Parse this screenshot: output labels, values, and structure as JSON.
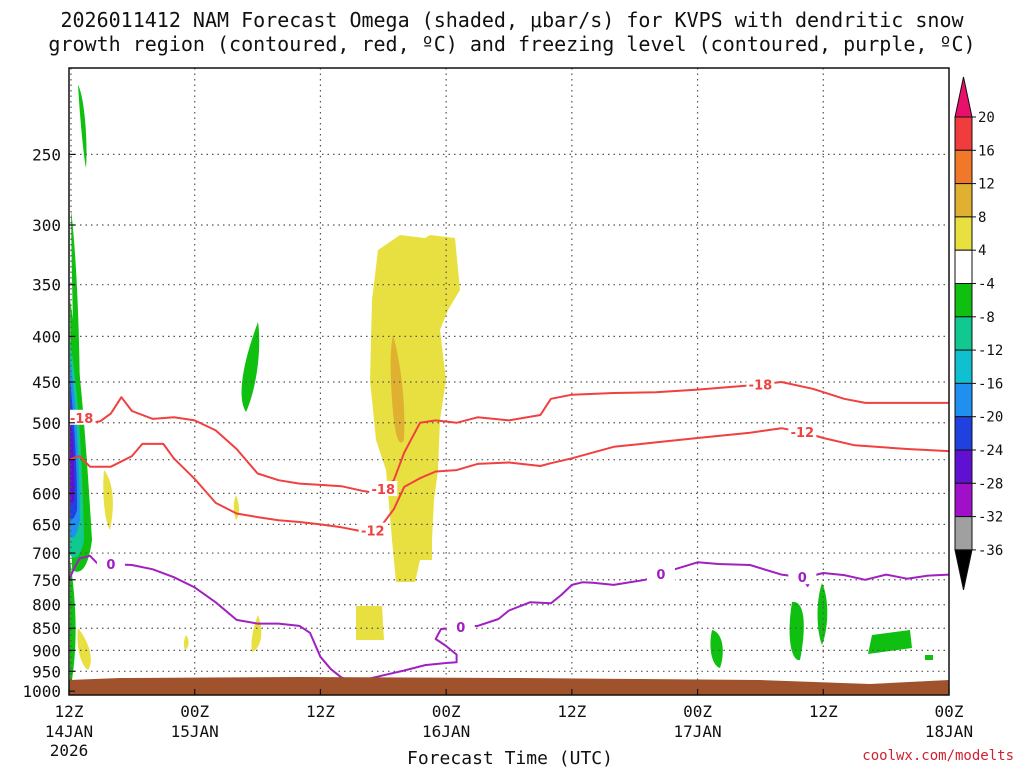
{
  "chart_data": {
    "type": "time-height cross section",
    "title_line1": "2026011412 NAM Forecast Omega (shaded, μbar/s) for KVPS with dendritic snow",
    "title_line2": "growth region (contoured, red, ºC) and freezing level (contoured, purple, ºC)",
    "xlabel": "Forecast Time (UTC)",
    "credit": "coolwx.com/modelts",
    "x_range_hours": [
      0,
      84
    ],
    "y_range_hpa": [
      200,
      1010
    ],
    "y_scale": "log-pressure",
    "grid": true,
    "x_ticks": [
      {
        "h": 0,
        "l1": "12Z",
        "l2": "14JAN",
        "l3": "2026"
      },
      {
        "h": 12,
        "l1": "00Z",
        "l2": "15JAN",
        "l3": ""
      },
      {
        "h": 24,
        "l1": "12Z",
        "l2": "",
        "l3": ""
      },
      {
        "h": 36,
        "l1": "00Z",
        "l2": "16JAN",
        "l3": ""
      },
      {
        "h": 48,
        "l1": "12Z",
        "l2": "",
        "l3": ""
      },
      {
        "h": 60,
        "l1": "00Z",
        "l2": "17JAN",
        "l3": ""
      },
      {
        "h": 72,
        "l1": "12Z",
        "l2": "",
        "l3": ""
      },
      {
        "h": 84,
        "l1": "00Z",
        "l2": "18JAN",
        "l3": ""
      }
    ],
    "y_ticks": [
      250,
      300,
      350,
      400,
      450,
      500,
      550,
      600,
      650,
      700,
      750,
      800,
      850,
      900,
      950,
      1000
    ],
    "colorbar": {
      "labels": [
        "20",
        "16",
        "12",
        "8",
        "4",
        "-4",
        "-8",
        "-12",
        "-16",
        "-20",
        "-24",
        "-28",
        "-32",
        "-36"
      ],
      "colors": [
        "#e8106a",
        "#f03c3c",
        "#f07828",
        "#e0b030",
        "#e8e040",
        "#ffffff",
        "#10c010",
        "#10c890",
        "#10c0d0",
        "#2090f0",
        "#2040e0",
        "#6010d0",
        "#a010c8",
        "#a0a0a0",
        "#000000"
      ]
    },
    "series": [
      {
        "name": "-18",
        "color": "#f04040",
        "points": [
          [
            0,
            488
          ],
          [
            1,
            492
          ],
          [
            2,
            500
          ],
          [
            3,
            498
          ],
          [
            4,
            488
          ],
          [
            5,
            468
          ],
          [
            6,
            485
          ],
          [
            8,
            495
          ],
          [
            10,
            493
          ],
          [
            12,
            497
          ],
          [
            14,
            510
          ],
          [
            16,
            535
          ],
          [
            18,
            570
          ],
          [
            20,
            580
          ],
          [
            22,
            585
          ],
          [
            24,
            587
          ],
          [
            26,
            589
          ],
          [
            28,
            596
          ],
          [
            29.5,
            600
          ],
          [
            31,
            580
          ],
          [
            32,
            540
          ],
          [
            33.5,
            500
          ],
          [
            35,
            497
          ],
          [
            37,
            500
          ],
          [
            39,
            493
          ],
          [
            42,
            497
          ],
          [
            45,
            490
          ],
          [
            46,
            470
          ],
          [
            48,
            465
          ],
          [
            52,
            463
          ],
          [
            56,
            462
          ],
          [
            60,
            459
          ],
          [
            65,
            454
          ],
          [
            68,
            450
          ],
          [
            71,
            458
          ],
          [
            74,
            470
          ],
          [
            76,
            475
          ],
          [
            80,
            475
          ],
          [
            84,
            475
          ]
        ]
      },
      {
        "name": "-12",
        "color": "#f04040",
        "points": [
          [
            0,
            550
          ],
          [
            1,
            545
          ],
          [
            2,
            560
          ],
          [
            4,
            560
          ],
          [
            6,
            545
          ],
          [
            7,
            528
          ],
          [
            9,
            528
          ],
          [
            10,
            548
          ],
          [
            12,
            578
          ],
          [
            14,
            615
          ],
          [
            16,
            632
          ],
          [
            18,
            638
          ],
          [
            20,
            643
          ],
          [
            22,
            646
          ],
          [
            24,
            650
          ],
          [
            26,
            655
          ],
          [
            28,
            662
          ],
          [
            29.5,
            660
          ],
          [
            31,
            625
          ],
          [
            32,
            590
          ],
          [
            33.5,
            577
          ],
          [
            35,
            567
          ],
          [
            37,
            565
          ],
          [
            39,
            556
          ],
          [
            42,
            554
          ],
          [
            45,
            559
          ],
          [
            46,
            555
          ],
          [
            48,
            548
          ],
          [
            52,
            532
          ],
          [
            56,
            526
          ],
          [
            60,
            520
          ],
          [
            65,
            513
          ],
          [
            68,
            507
          ],
          [
            70,
            512
          ],
          [
            72,
            520
          ],
          [
            75,
            530
          ],
          [
            80,
            535
          ],
          [
            84,
            538
          ]
        ]
      },
      {
        "name": "0",
        "color": "#a020c0",
        "points": [
          [
            0,
            750
          ],
          [
            0.5,
            728
          ],
          [
            1,
            710
          ],
          [
            2,
            705
          ],
          [
            3,
            725
          ],
          [
            4,
            720
          ],
          [
            6,
            722
          ],
          [
            8,
            730
          ],
          [
            10,
            745
          ],
          [
            12,
            765
          ],
          [
            14,
            795
          ],
          [
            16,
            832
          ],
          [
            18,
            840
          ],
          [
            20,
            840
          ],
          [
            22,
            845
          ],
          [
            23,
            860
          ],
          [
            24,
            915
          ],
          [
            25,
            945
          ],
          [
            26,
            965
          ],
          [
            27,
            975
          ],
          [
            28,
            972
          ],
          [
            30,
            960
          ],
          [
            32,
            948
          ],
          [
            34,
            935
          ],
          [
            36,
            930
          ],
          [
            37,
            928
          ],
          [
            37,
            910
          ],
          [
            36,
            890
          ],
          [
            35,
            874
          ],
          [
            35.5,
            852
          ],
          [
            37,
            848
          ],
          [
            39,
            845
          ],
          [
            41,
            830
          ],
          [
            42,
            812
          ],
          [
            44,
            795
          ],
          [
            46,
            797
          ],
          [
            47,
            780
          ],
          [
            48,
            760
          ],
          [
            49,
            755
          ],
          [
            50,
            756
          ],
          [
            52,
            760
          ],
          [
            55,
            750
          ],
          [
            57,
            735
          ],
          [
            60,
            717
          ],
          [
            62,
            720
          ],
          [
            65,
            722
          ],
          [
            68,
            740
          ],
          [
            70,
            745
          ],
          [
            70.5,
            762
          ],
          [
            71,
            742
          ],
          [
            72,
            737
          ],
          [
            74,
            741
          ],
          [
            76,
            750
          ],
          [
            78,
            740
          ],
          [
            80,
            748
          ],
          [
            82,
            742
          ],
          [
            84,
            740
          ]
        ]
      }
    ],
    "omega_regions": [
      {
        "level": "ascent -4 to -8",
        "color": "#10c010",
        "desc": "upper-level ascent near start"
      },
      {
        "level": "descent 4 to 8",
        "color": "#e8e040",
        "desc": "subsidence near 00Z 16JAN"
      },
      {
        "level": "descent 8 to 12",
        "color": "#e0b030",
        "desc": "core of subsidence"
      },
      {
        "level": "ascent -8 to -36",
        "color": "#6010d0",
        "desc": "strong ascent at initial time"
      }
    ]
  }
}
